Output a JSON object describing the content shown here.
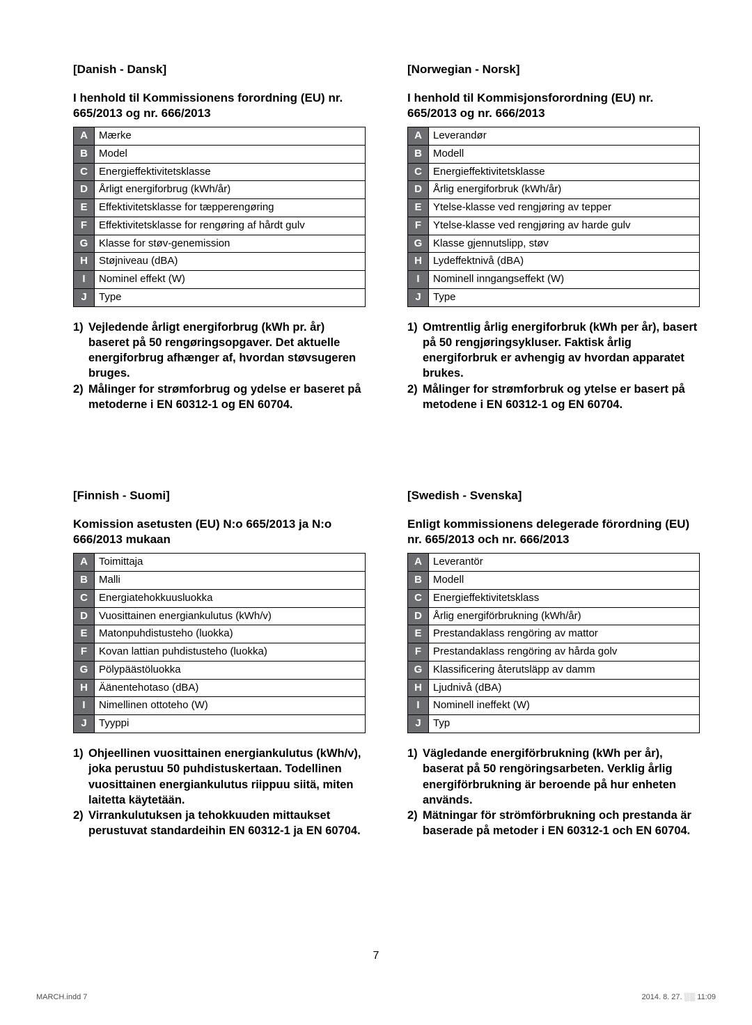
{
  "page_number": "7",
  "footer_left": "MARCH.indd   7",
  "footer_right": "2014. 8. 27.   ░░ 11:09",
  "sections": {
    "danish": {
      "heading": "[Danish - Dansk]",
      "table_heading": "I henhold til Kommissionens forordning (EU) nr. 665/2013 og nr. 666/2013",
      "rows": [
        {
          "k": "A",
          "v": "Mærke"
        },
        {
          "k": "B",
          "v": "Model"
        },
        {
          "k": "C",
          "v": "Energieffektivitetsklasse"
        },
        {
          "k": "D",
          "v": "Årligt energiforbrug (kWh/år)"
        },
        {
          "k": "E",
          "v": "Effektivitetsklasse for tæpperengøring"
        },
        {
          "k": "F",
          "v": "Effektivitetsklasse for rengøring af hårdt gulv"
        },
        {
          "k": "G",
          "v": "Klasse for støv-genemission"
        },
        {
          "k": "H",
          "v": "Støjniveau (dBA)"
        },
        {
          "k": "I",
          "v": "Nominel effekt (W)"
        },
        {
          "k": "J",
          "v": "Type"
        }
      ],
      "note1": "Vejledende årligt energiforbrug (kWh pr. år) baseret på 50 rengøringsopgaver. Det aktuelle energiforbrug afhænger af, hvordan støvsugeren bruges.",
      "note2": "Målinger for strømforbrug og ydelse er baseret på metoderne i EN 60312-1 og EN 60704."
    },
    "norwegian": {
      "heading": "[Norwegian - Norsk]",
      "table_heading": "I henhold til Kommisjonsforordning (EU) nr. 665/2013 og nr. 666/2013",
      "rows": [
        {
          "k": "A",
          "v": "Leverandør"
        },
        {
          "k": "B",
          "v": "Modell"
        },
        {
          "k": "C",
          "v": "Energieffektivitetsklasse"
        },
        {
          "k": "D",
          "v": "Årlig energiforbruk (kWh/år)"
        },
        {
          "k": "E",
          "v": "Ytelse-klasse ved rengjøring av tepper"
        },
        {
          "k": "F",
          "v": "Ytelse-klasse ved rengjøring av harde gulv"
        },
        {
          "k": "G",
          "v": "Klasse gjennutslipp, støv"
        },
        {
          "k": "H",
          "v": "Lydeffektnivå (dBA)"
        },
        {
          "k": "I",
          "v": "Nominell inngangseffekt (W)"
        },
        {
          "k": "J",
          "v": "Type"
        }
      ],
      "note1": "Omtrentlig årlig energiforbruk (kWh per år), basert på 50 rengjøringsykluser. Faktisk årlig energiforbruk er avhengig av hvordan apparatet brukes.",
      "note2": "Målinger for strømforbruk og ytelse er basert på metodene i EN 60312-1 og EN 60704."
    },
    "finnish": {
      "heading": "[Finnish - Suomi]",
      "table_heading": "Komission asetusten (EU) N:o 665/2013 ja N:o 666/2013 mukaan",
      "rows": [
        {
          "k": "A",
          "v": "Toimittaja"
        },
        {
          "k": "B",
          "v": "Malli"
        },
        {
          "k": "C",
          "v": "Energiatehokkuusluokka"
        },
        {
          "k": "D",
          "v": "Vuosittainen energiankulutus (kWh/v)"
        },
        {
          "k": "E",
          "v": "Matonpuhdistusteho (luokka)"
        },
        {
          "k": "F",
          "v": "Kovan lattian puhdistusteho (luokka)"
        },
        {
          "k": "G",
          "v": "Pölypäästöluokka"
        },
        {
          "k": "H",
          "v": "Äänentehotaso (dBA)"
        },
        {
          "k": "I",
          "v": "Nimellinen ottoteho (W)"
        },
        {
          "k": "J",
          "v": "Tyyppi"
        }
      ],
      "note1": "Ohjeellinen vuosittainen energiankulutus (kWh/v), joka perustuu 50 puhdistuskertaan. Todellinen vuosittainen energiankulutus riippuu siitä, miten laitetta käytetään.",
      "note2": "Virrankulutuksen ja tehokkuuden mittaukset perustuvat standardeihin EN 60312-1 ja EN 60704."
    },
    "swedish": {
      "heading": "[Swedish - Svenska]",
      "table_heading": "Enligt kommissionens delegerade förordning (EU) nr. 665/2013 och nr. 666/2013",
      "rows": [
        {
          "k": "A",
          "v": "Leverantör"
        },
        {
          "k": "B",
          "v": "Modell"
        },
        {
          "k": "C",
          "v": "Energieffektivitetsklass"
        },
        {
          "k": "D",
          "v": "Årlig energiförbrukning (kWh/år)"
        },
        {
          "k": "E",
          "v": "Prestandaklass rengöring av mattor"
        },
        {
          "k": "F",
          "v": "Prestandaklass rengöring av hårda golv"
        },
        {
          "k": "G",
          "v": "Klassificering återutsläpp av damm"
        },
        {
          "k": "H",
          "v": "Ljudnivå (dBA)"
        },
        {
          "k": "I",
          "v": "Nominell ineffekt (W)"
        },
        {
          "k": "J",
          "v": "Typ"
        }
      ],
      "note1": "Vägledande energiförbrukning (kWh per år), baserat på 50 rengöringsarbeten. Verklig årlig energiförbrukning är beroende på hur enheten används.",
      "note2": "Mätningar för strömförbrukning och prestanda är baserade på metoder i EN 60312-1 och EN 60704."
    }
  }
}
